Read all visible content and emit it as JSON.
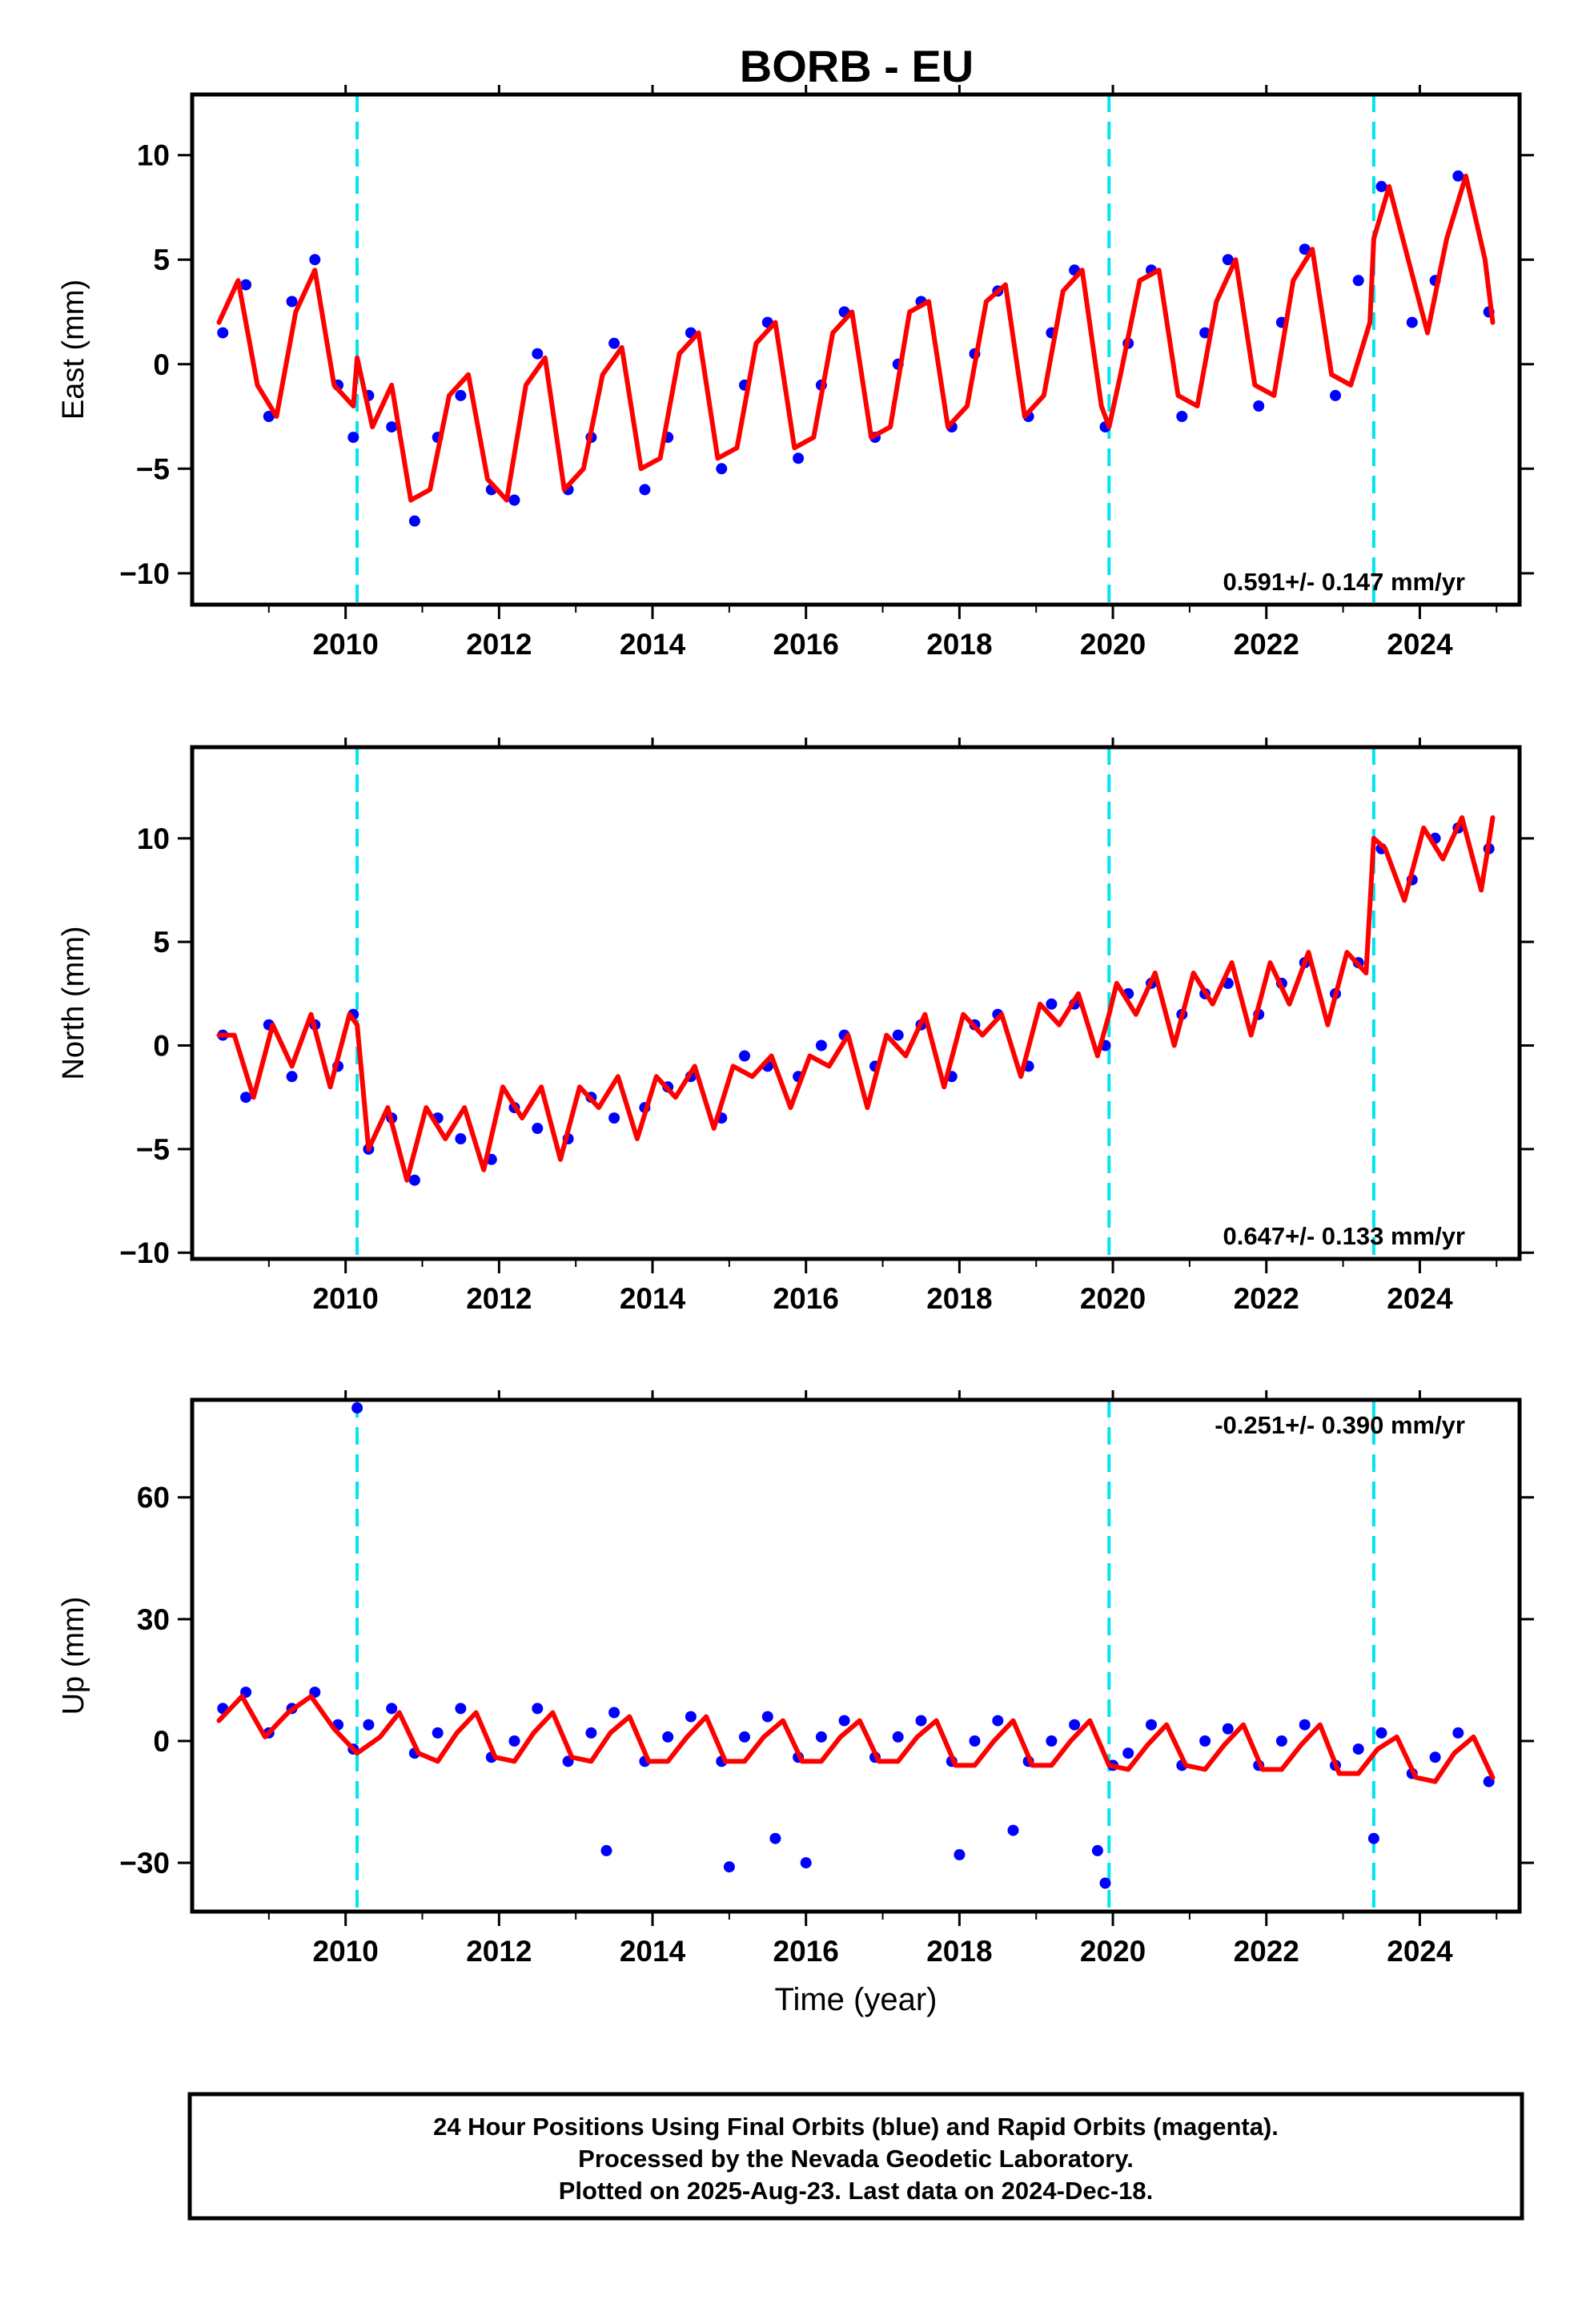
{
  "chart_data": [
    {
      "type": "scatter",
      "panel": "east",
      "title": "BORB - EU",
      "ylabel": "East (mm)",
      "xlabel": "",
      "rate_text": "0.591+/- 0.147 mm/yr",
      "xlim": [
        2008.0,
        2025.3
      ],
      "ylim": [
        -11.5,
        12.9
      ],
      "x_ticks": [
        2010,
        2012,
        2014,
        2016,
        2018,
        2020,
        2022,
        2024
      ],
      "x_tick_labels": [
        "2010",
        "2012",
        "2014",
        "2016",
        "2018",
        "2020",
        "2022",
        "2024"
      ],
      "y_ticks": [
        -10,
        -5,
        0,
        5,
        10
      ],
      "y_tick_labels": [
        "−10",
        "−5",
        "0",
        "5",
        "10"
      ],
      "event_lines_x": [
        2010.15,
        2019.95,
        2023.4
      ],
      "series": [
        {
          "kind": "scatter",
          "color": "#0000ff",
          "x": [
            2008.4,
            2008.7,
            2009.0,
            2009.3,
            2009.6,
            2009.9,
            2010.1,
            2010.3,
            2010.6,
            2010.9,
            2011.2,
            2011.5,
            2011.9,
            2012.2,
            2012.5,
            2012.9,
            2013.2,
            2013.5,
            2013.9,
            2014.2,
            2014.5,
            2014.9,
            2015.2,
            2015.5,
            2015.9,
            2016.2,
            2016.5,
            2016.9,
            2017.2,
            2017.5,
            2017.9,
            2018.2,
            2018.5,
            2018.9,
            2019.2,
            2019.5,
            2019.9,
            2020.2,
            2020.5,
            2020.9,
            2021.2,
            2021.5,
            2021.9,
            2022.2,
            2022.5,
            2022.9,
            2023.2,
            2023.5,
            2023.9,
            2024.2,
            2024.5,
            2024.9
          ],
          "y": [
            1.5,
            3.8,
            -2.5,
            3.0,
            5.0,
            -1.0,
            -3.5,
            -1.5,
            -3.0,
            -7.5,
            -3.5,
            -1.5,
            -6.0,
            -6.5,
            0.5,
            -6.0,
            -3.5,
            1.0,
            -6.0,
            -3.5,
            1.5,
            -5.0,
            -1.0,
            2.0,
            -4.5,
            -1.0,
            2.5,
            -3.5,
            0.0,
            3.0,
            -3.0,
            0.5,
            3.5,
            -2.5,
            1.5,
            4.5,
            -3.0,
            1.0,
            4.5,
            -2.5,
            1.5,
            5.0,
            -2.0,
            2.0,
            5.5,
            -1.5,
            4.0,
            8.5,
            2.0,
            4.0,
            9.0,
            2.5
          ]
        },
        {
          "kind": "line",
          "color": "#ff0000",
          "x": [
            2008.35,
            2008.6,
            2008.85,
            2009.1,
            2009.35,
            2009.6,
            2009.85,
            2010.1,
            2010.15,
            2010.35,
            2010.6,
            2010.85,
            2011.1,
            2011.35,
            2011.6,
            2011.85,
            2012.1,
            2012.35,
            2012.6,
            2012.85,
            2013.1,
            2013.35,
            2013.6,
            2013.85,
            2014.1,
            2014.35,
            2014.6,
            2014.85,
            2015.1,
            2015.35,
            2015.6,
            2015.85,
            2016.1,
            2016.35,
            2016.6,
            2016.85,
            2017.1,
            2017.35,
            2017.6,
            2017.85,
            2018.1,
            2018.35,
            2018.6,
            2018.85,
            2019.1,
            2019.35,
            2019.6,
            2019.85,
            2019.95,
            2020.1,
            2020.35,
            2020.6,
            2020.85,
            2021.1,
            2021.35,
            2021.6,
            2021.85,
            2022.1,
            2022.35,
            2022.6,
            2022.85,
            2023.1,
            2023.35,
            2023.4,
            2023.6,
            2023.85,
            2024.1,
            2024.35,
            2024.6,
            2024.85,
            2024.95
          ],
          "y": [
            2.0,
            4.0,
            -1.0,
            -2.5,
            2.5,
            4.5,
            -1.0,
            -2.0,
            0.3,
            -3.0,
            -1.0,
            -6.5,
            -6.0,
            -1.5,
            -0.5,
            -5.5,
            -6.5,
            -1.0,
            0.3,
            -6.0,
            -5.0,
            -0.5,
            0.8,
            -5.0,
            -4.5,
            0.5,
            1.5,
            -4.5,
            -4.0,
            1.0,
            2.0,
            -4.0,
            -3.5,
            1.5,
            2.5,
            -3.5,
            -3.0,
            2.5,
            3.0,
            -3.0,
            -2.0,
            3.0,
            3.8,
            -2.5,
            -1.5,
            3.5,
            4.5,
            -2.0,
            -3.0,
            -0.5,
            4.0,
            4.5,
            -1.5,
            -2.0,
            3.0,
            5.0,
            -1.0,
            -1.5,
            4.0,
            5.5,
            -0.5,
            -1.0,
            2.0,
            6.0,
            8.5,
            5.0,
            1.5,
            6.0,
            9.0,
            5.0,
            2.0
          ]
        }
      ]
    },
    {
      "type": "scatter",
      "panel": "north",
      "title": "",
      "ylabel": "North (mm)",
      "xlabel": "",
      "rate_text": "0.647+/- 0.133 mm/yr",
      "xlim": [
        2008.0,
        2025.3
      ],
      "ylim": [
        -10.3,
        14.4
      ],
      "x_ticks": [
        2010,
        2012,
        2014,
        2016,
        2018,
        2020,
        2022,
        2024
      ],
      "x_tick_labels": [
        "2010",
        "2012",
        "2014",
        "2016",
        "2018",
        "2020",
        "2022",
        "2024"
      ],
      "y_ticks": [
        -10,
        -5,
        0,
        5,
        10
      ],
      "y_tick_labels": [
        "−10",
        "−5",
        "0",
        "5",
        "10"
      ],
      "event_lines_x": [
        2010.15,
        2019.95,
        2023.4
      ],
      "series": [
        {
          "kind": "scatter",
          "color": "#0000ff",
          "x": [
            2008.4,
            2008.7,
            2009.0,
            2009.3,
            2009.6,
            2009.9,
            2010.1,
            2010.3,
            2010.6,
            2010.9,
            2011.2,
            2011.5,
            2011.9,
            2012.2,
            2012.5,
            2012.9,
            2013.2,
            2013.5,
            2013.9,
            2014.2,
            2014.5,
            2014.9,
            2015.2,
            2015.5,
            2015.9,
            2016.2,
            2016.5,
            2016.9,
            2017.2,
            2017.5,
            2017.9,
            2018.2,
            2018.5,
            2018.9,
            2019.2,
            2019.5,
            2019.9,
            2020.2,
            2020.5,
            2020.9,
            2021.2,
            2021.5,
            2021.9,
            2022.2,
            2022.5,
            2022.9,
            2023.2,
            2023.5,
            2023.9,
            2024.2,
            2024.5,
            2024.9
          ],
          "y": [
            0.5,
            -2.5,
            1.0,
            -1.5,
            1.0,
            -1.0,
            1.5,
            -5.0,
            -3.5,
            -6.5,
            -3.5,
            -4.5,
            -5.5,
            -3.0,
            -4.0,
            -4.5,
            -2.5,
            -3.5,
            -3.0,
            -2.0,
            -1.5,
            -3.5,
            -0.5,
            -1.0,
            -1.5,
            0.0,
            0.5,
            -1.0,
            0.5,
            1.0,
            -1.5,
            1.0,
            1.5,
            -1.0,
            2.0,
            2.0,
            0.0,
            2.5,
            3.0,
            1.5,
            2.5,
            3.0,
            1.5,
            3.0,
            4.0,
            2.5,
            4.0,
            9.5,
            8.0,
            10.0,
            10.5,
            9.5
          ]
        },
        {
          "kind": "line",
          "color": "#ff0000",
          "x": [
            2008.35,
            2008.55,
            2008.8,
            2009.05,
            2009.3,
            2009.55,
            2009.8,
            2010.05,
            2010.15,
            2010.3,
            2010.55,
            2010.8,
            2011.05,
            2011.3,
            2011.55,
            2011.8,
            2012.05,
            2012.3,
            2012.55,
            2012.8,
            2013.05,
            2013.3,
            2013.55,
            2013.8,
            2014.05,
            2014.3,
            2014.55,
            2014.8,
            2015.05,
            2015.3,
            2015.55,
            2015.8,
            2016.05,
            2016.3,
            2016.55,
            2016.8,
            2017.05,
            2017.3,
            2017.55,
            2017.8,
            2018.05,
            2018.3,
            2018.55,
            2018.8,
            2019.05,
            2019.3,
            2019.55,
            2019.8,
            2019.95,
            2020.05,
            2020.3,
            2020.55,
            2020.8,
            2021.05,
            2021.3,
            2021.55,
            2021.8,
            2022.05,
            2022.3,
            2022.55,
            2022.8,
            2023.05,
            2023.3,
            2023.4,
            2023.55,
            2023.8,
            2024.05,
            2024.3,
            2024.55,
            2024.8,
            2024.95
          ],
          "y": [
            0.5,
            0.5,
            -2.5,
            1.0,
            -1.0,
            1.5,
            -2.0,
            1.5,
            1.0,
            -5.0,
            -3.0,
            -6.5,
            -3.0,
            -4.5,
            -3.0,
            -6.0,
            -2.0,
            -3.5,
            -2.0,
            -5.5,
            -2.0,
            -3.0,
            -1.5,
            -4.5,
            -1.5,
            -2.5,
            -1.0,
            -4.0,
            -1.0,
            -1.5,
            -0.5,
            -3.0,
            -0.5,
            -1.0,
            0.5,
            -3.0,
            0.5,
            -0.5,
            1.5,
            -2.0,
            1.5,
            0.5,
            1.5,
            -1.5,
            2.0,
            1.0,
            2.5,
            -0.5,
            1.5,
            3.0,
            1.5,
            3.5,
            0.0,
            3.5,
            2.0,
            4.0,
            0.5,
            4.0,
            2.0,
            4.5,
            1.0,
            4.5,
            3.5,
            10.0,
            9.5,
            7.0,
            10.5,
            9.0,
            11.0,
            7.5,
            11.0
          ]
        }
      ]
    },
    {
      "type": "scatter",
      "panel": "up",
      "title": "",
      "ylabel": "Up (mm)",
      "xlabel": "Time (year)",
      "rate_text": "-0.251+/- 0.390 mm/yr",
      "xlim": [
        2008.0,
        2025.3
      ],
      "ylim": [
        -42,
        84
      ],
      "x_ticks": [
        2010,
        2012,
        2014,
        2016,
        2018,
        2020,
        2022,
        2024
      ],
      "x_tick_labels": [
        "2010",
        "2012",
        "2014",
        "2016",
        "2018",
        "2020",
        "2022",
        "2024"
      ],
      "y_ticks": [
        -30,
        0,
        30,
        60
      ],
      "y_tick_labels": [
        "−30",
        "0",
        "30",
        "60"
      ],
      "event_lines_x": [
        2010.15,
        2019.95,
        2023.4
      ],
      "series": [
        {
          "kind": "scatter",
          "color": "#0000ff",
          "x": [
            2008.4,
            2008.7,
            2009.0,
            2009.3,
            2009.6,
            2009.9,
            2010.1,
            2010.15,
            2010.3,
            2010.6,
            2010.9,
            2011.2,
            2011.5,
            2011.9,
            2012.2,
            2012.5,
            2012.9,
            2013.2,
            2013.4,
            2013.5,
            2013.9,
            2014.2,
            2014.5,
            2014.9,
            2015.0,
            2015.2,
            2015.5,
            2015.6,
            2015.9,
            2016.0,
            2016.2,
            2016.5,
            2016.9,
            2017.2,
            2017.5,
            2017.9,
            2018.0,
            2018.2,
            2018.5,
            2018.7,
            2018.9,
            2019.2,
            2019.5,
            2019.8,
            2019.9,
            2020.0,
            2020.2,
            2020.5,
            2020.9,
            2021.2,
            2021.5,
            2021.9,
            2022.2,
            2022.5,
            2022.9,
            2023.2,
            2023.4,
            2023.5,
            2023.9,
            2024.2,
            2024.5,
            2024.9
          ],
          "y": [
            8,
            12,
            2,
            8,
            12,
            4,
            -2,
            82,
            4,
            8,
            -3,
            2,
            8,
            -4,
            0,
            8,
            -5,
            2,
            -27,
            7,
            -5,
            1,
            6,
            -5,
            -31,
            1,
            6,
            -24,
            -4,
            -30,
            1,
            5,
            -4,
            1,
            5,
            -5,
            -28,
            0,
            5,
            -22,
            -5,
            0,
            4,
            -27,
            -35,
            -6,
            -3,
            4,
            -6,
            0,
            3,
            -6,
            0,
            4,
            -6,
            -2,
            -24,
            2,
            -8,
            -4,
            2,
            -10
          ]
        },
        {
          "kind": "line",
          "color": "#ff0000",
          "x": [
            2008.35,
            2008.65,
            2008.95,
            2009.25,
            2009.55,
            2009.85,
            2010.15,
            2010.45,
            2010.7,
            2010.95,
            2011.2,
            2011.45,
            2011.7,
            2011.95,
            2012.2,
            2012.45,
            2012.7,
            2012.95,
            2013.2,
            2013.45,
            2013.7,
            2013.95,
            2014.2,
            2014.45,
            2014.7,
            2014.95,
            2015.2,
            2015.45,
            2015.7,
            2015.95,
            2016.2,
            2016.45,
            2016.7,
            2016.95,
            2017.2,
            2017.45,
            2017.7,
            2017.95,
            2018.2,
            2018.45,
            2018.7,
            2018.95,
            2019.2,
            2019.45,
            2019.7,
            2019.95,
            2020.2,
            2020.45,
            2020.7,
            2020.95,
            2021.2,
            2021.45,
            2021.7,
            2021.95,
            2022.2,
            2022.45,
            2022.7,
            2022.95,
            2023.2,
            2023.45,
            2023.7,
            2023.95,
            2024.2,
            2024.45,
            2024.7,
            2024.95
          ],
          "y": [
            5,
            11,
            1,
            7,
            11,
            3,
            -3,
            1,
            7,
            -3,
            -5,
            2,
            7,
            -4,
            -5,
            2,
            7,
            -4,
            -5,
            2,
            6,
            -5,
            -5,
            1,
            6,
            -5,
            -5,
            1,
            5,
            -5,
            -5,
            1,
            5,
            -5,
            -5,
            1,
            5,
            -6,
            -6,
            0,
            5,
            -6,
            -6,
            0,
            5,
            -6,
            -7,
            -1,
            4,
            -6,
            -7,
            -1,
            4,
            -7,
            -7,
            -1,
            4,
            -8,
            -8,
            -2,
            1,
            -9,
            -10,
            -3,
            1,
            -9
          ]
        }
      ]
    }
  ],
  "footer": {
    "line1": "24 Hour Positions Using Final Orbits (blue) and Rapid Orbits (magenta).",
    "line2": "Processed by the Nevada Geodetic Laboratory.",
    "line3": "Plotted on 2025-Aug-23. Last data on 2024-Dec-18."
  },
  "colors": {
    "final_orbits": "#0000ff",
    "model_fit": "#ff0000",
    "event_line": "#00e5ee",
    "frame": "#000000"
  }
}
